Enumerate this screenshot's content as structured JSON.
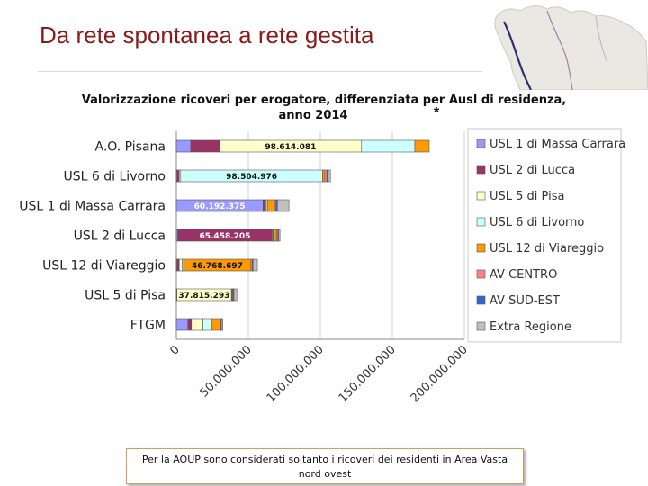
{
  "slide": {
    "title": "Da rete spontanea a rete gestita",
    "note": "Per la AOUP sono considerati soltanto i ricoveri dei residenti in Area Vasta nord ovest",
    "map_icon": "tuscany-map-thumbnail"
  },
  "chart_data": {
    "type": "bar",
    "stacked": true,
    "orientation": "horizontal",
    "title": "Valorizzazione ricoveri per erogatore, differenziata per Ausl di residenza, anno 2014",
    "asterisk": "*",
    "categories": [
      "A.O. Pisana",
      "USL 6 di Livorno",
      "USL 1 di Massa Carrara",
      "USL 2 di Lucca",
      "USL 12 di Viareggio",
      "USL 5 di Pisa",
      "FTGM"
    ],
    "xlim": [
      0,
      200000000
    ],
    "xticks": [
      0,
      50000000,
      100000000,
      150000000,
      200000000
    ],
    "xtick_labels": [
      "0",
      "50.000.000",
      "100.000.000",
      "150.000.000",
      "200.000.000"
    ],
    "grid": true,
    "legend_position": "right",
    "series": [
      {
        "name": "USL 1 di Massa Carrara",
        "color": "#9999ff",
        "values": [
          10000000,
          500000,
          60192375,
          1000000,
          500000,
          200000,
          8000000
        ]
      },
      {
        "name": "USL 2 di Lucca",
        "color": "#993366",
        "values": [
          20000000,
          1500000,
          1000000,
          65458205,
          1500000,
          200000,
          2500000
        ]
      },
      {
        "name": "USL 5 di Pisa",
        "color": "#ffffcc",
        "values": [
          98614081,
          1000000,
          1000000,
          500000,
          2000000,
          37815293,
          8000000
        ]
      },
      {
        "name": "USL 6 di Livorno",
        "color": "#ccffff",
        "values": [
          37000000,
          98504976,
          1000000,
          500000,
          1000000,
          500000,
          6000000
        ]
      },
      {
        "name": "USL 12 di Viareggio",
        "color": "#ff9900",
        "values": [
          10000000,
          1500000,
          5000000,
          2000000,
          46768697,
          500000,
          6000000
        ]
      },
      {
        "name": "AV CENTRO",
        "color": "#ff8080",
        "values": [
          0,
          1500000,
          1000000,
          1000000,
          1000000,
          500000,
          500000
        ]
      },
      {
        "name": "AV SUD-EST",
        "color": "#3366cc",
        "values": [
          0,
          1000000,
          1000000,
          500000,
          500000,
          300000,
          300000
        ]
      },
      {
        "name": "Extra Regione",
        "color": "#c0c0c0",
        "values": [
          0,
          1500000,
          8000000,
          1000000,
          3000000,
          2000000,
          1000000
        ]
      }
    ],
    "data_labels": [
      {
        "category": "A.O. Pisana",
        "series": "USL 5 di Pisa",
        "text": "98.614.081"
      },
      {
        "category": "USL 6 di Livorno",
        "series": "USL 6 di Livorno",
        "text": "98.504.976"
      },
      {
        "category": "USL 1 di Massa Carrara",
        "series": "USL 1 di Massa Carrara",
        "text": "60.192.375"
      },
      {
        "category": "USL 2 di Lucca",
        "series": "USL 2 di Lucca",
        "text": "65.458.205"
      },
      {
        "category": "USL 12 di Viareggio",
        "series": "USL 12 di Viareggio",
        "text": "46.768.697"
      },
      {
        "category": "USL 5 di Pisa",
        "series": "USL 5 di Pisa",
        "text": "37.815.293"
      }
    ]
  }
}
